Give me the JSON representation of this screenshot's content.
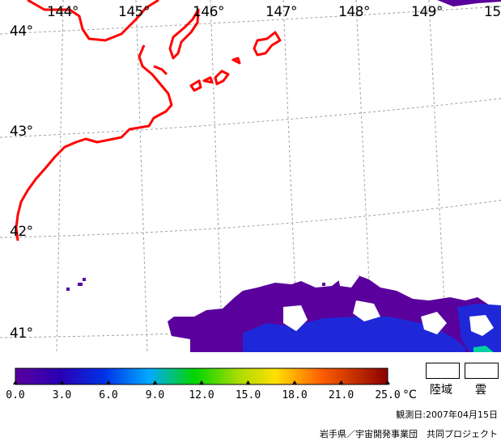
{
  "map": {
    "longitude_labels": [
      "144°",
      "145°",
      "146°",
      "147°",
      "148°",
      "149°",
      "15"
    ],
    "latitude_labels": [
      "44°",
      "43°",
      "42°",
      "41°"
    ]
  },
  "colorbar": {
    "unit": "°C",
    "tick_labels": [
      "0.0",
      "3.0",
      "6.0",
      "9.0",
      "12.0",
      "15.0",
      "18.0",
      "21.0",
      "25.0"
    ],
    "colors": [
      "#5a009c",
      "#2a00b4",
      "#0032e6",
      "#00aaff",
      "#00e0b0",
      "#00d400",
      "#ffe000",
      "#ff6000",
      "#8c0000"
    ]
  },
  "legend": {
    "land_label": "陸域",
    "cloud_label": "雲"
  },
  "observation_date": "観測日:2007年04月15日",
  "credit": "岩手県／宇宙開発事業団　共同プロジェクト",
  "colors": {
    "coastline": "#ff0000",
    "graticule": "#a0a0a0",
    "sst_dominant": "#5a009c",
    "sst_warmer": "#1e28d8"
  }
}
